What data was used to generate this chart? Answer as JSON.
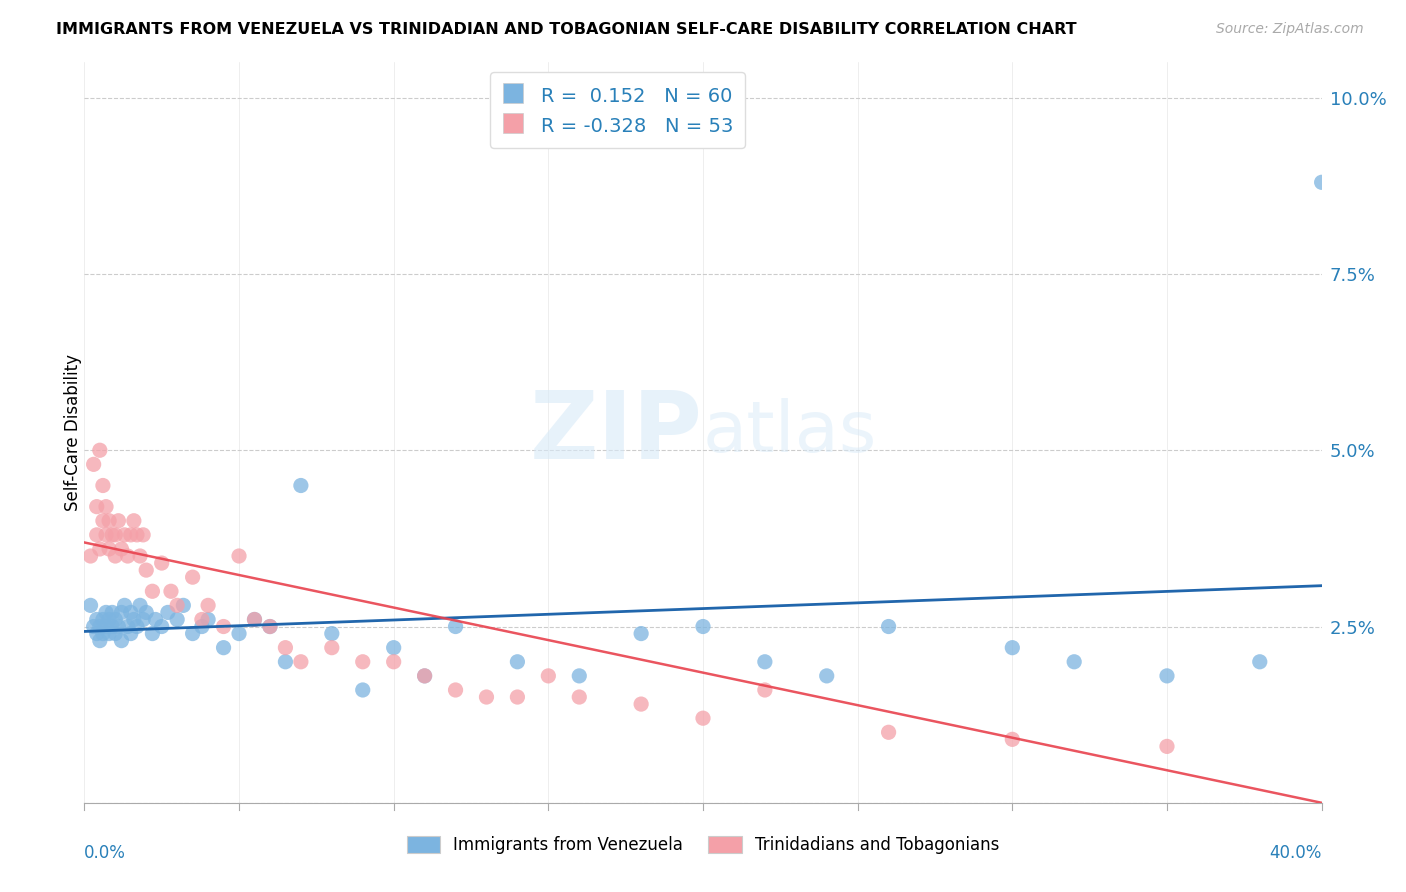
{
  "title": "IMMIGRANTS FROM VENEZUELA VS TRINIDADIAN AND TOBAGONIAN SELF-CARE DISABILITY CORRELATION CHART",
  "source": "Source: ZipAtlas.com",
  "ylabel": "Self-Care Disability",
  "xlim": [
    0.0,
    0.4
  ],
  "ylim": [
    0.0,
    0.105
  ],
  "yticks": [
    0.0,
    0.025,
    0.05,
    0.075,
    0.1
  ],
  "ytick_labels": [
    "",
    "2.5%",
    "5.0%",
    "7.5%",
    "10.0%"
  ],
  "R_blue": 0.152,
  "N_blue": 60,
  "R_pink": -0.328,
  "N_pink": 53,
  "blue_color": "#7cb4e0",
  "pink_color": "#f4a0a8",
  "blue_line_color": "#2166ac",
  "pink_line_color": "#e8424e",
  "legend_label_blue": "Immigrants from Venezuela",
  "legend_label_pink": "Trinidadians and Tobagonians",
  "blue_x": [
    0.002,
    0.003,
    0.004,
    0.004,
    0.005,
    0.005,
    0.006,
    0.006,
    0.007,
    0.007,
    0.008,
    0.008,
    0.009,
    0.009,
    0.01,
    0.01,
    0.011,
    0.012,
    0.012,
    0.013,
    0.014,
    0.015,
    0.015,
    0.016,
    0.017,
    0.018,
    0.019,
    0.02,
    0.022,
    0.023,
    0.025,
    0.027,
    0.03,
    0.032,
    0.035,
    0.038,
    0.04,
    0.045,
    0.05,
    0.055,
    0.06,
    0.065,
    0.07,
    0.08,
    0.09,
    0.1,
    0.11,
    0.12,
    0.14,
    0.16,
    0.18,
    0.2,
    0.22,
    0.24,
    0.26,
    0.3,
    0.32,
    0.35,
    0.38,
    0.4
  ],
  "blue_y": [
    0.028,
    0.025,
    0.024,
    0.026,
    0.023,
    0.025,
    0.024,
    0.026,
    0.025,
    0.027,
    0.024,
    0.026,
    0.025,
    0.027,
    0.024,
    0.026,
    0.025,
    0.027,
    0.023,
    0.028,
    0.025,
    0.024,
    0.027,
    0.026,
    0.025,
    0.028,
    0.026,
    0.027,
    0.024,
    0.026,
    0.025,
    0.027,
    0.026,
    0.028,
    0.024,
    0.025,
    0.026,
    0.022,
    0.024,
    0.026,
    0.025,
    0.02,
    0.045,
    0.024,
    0.016,
    0.022,
    0.018,
    0.025,
    0.02,
    0.018,
    0.024,
    0.025,
    0.02,
    0.018,
    0.025,
    0.022,
    0.02,
    0.018,
    0.02,
    0.088
  ],
  "pink_x": [
    0.002,
    0.003,
    0.004,
    0.004,
    0.005,
    0.005,
    0.006,
    0.006,
    0.007,
    0.007,
    0.008,
    0.008,
    0.009,
    0.01,
    0.01,
    0.011,
    0.012,
    0.013,
    0.014,
    0.015,
    0.016,
    0.017,
    0.018,
    0.019,
    0.02,
    0.022,
    0.025,
    0.028,
    0.03,
    0.035,
    0.038,
    0.04,
    0.045,
    0.05,
    0.055,
    0.06,
    0.065,
    0.07,
    0.08,
    0.09,
    0.1,
    0.11,
    0.12,
    0.13,
    0.14,
    0.15,
    0.16,
    0.18,
    0.2,
    0.22,
    0.26,
    0.3,
    0.35
  ],
  "pink_y": [
    0.035,
    0.048,
    0.038,
    0.042,
    0.05,
    0.036,
    0.045,
    0.04,
    0.042,
    0.038,
    0.036,
    0.04,
    0.038,
    0.035,
    0.038,
    0.04,
    0.036,
    0.038,
    0.035,
    0.038,
    0.04,
    0.038,
    0.035,
    0.038,
    0.033,
    0.03,
    0.034,
    0.03,
    0.028,
    0.032,
    0.026,
    0.028,
    0.025,
    0.035,
    0.026,
    0.025,
    0.022,
    0.02,
    0.022,
    0.02,
    0.02,
    0.018,
    0.016,
    0.015,
    0.015,
    0.018,
    0.015,
    0.014,
    0.012,
    0.016,
    0.01,
    0.009,
    0.008
  ]
}
